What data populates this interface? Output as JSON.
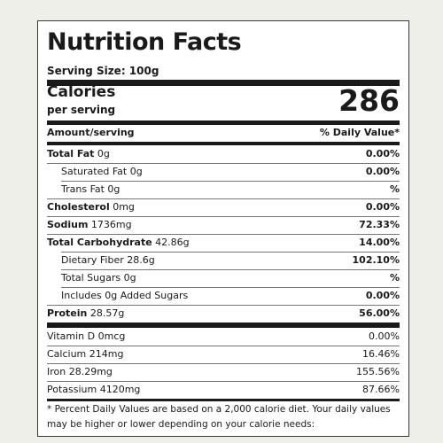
{
  "label": {
    "title": "Nutrition Facts",
    "serving_size": "Serving Size: 100g",
    "calories_label": "Calories",
    "per_serving": "per serving",
    "calories_value": "286",
    "amount_header": "Amount/serving",
    "dv_header": "% Daily Value*"
  },
  "nutrients": [
    {
      "name": "Total Fat",
      "amount": " 0g",
      "dv": "0.00%"
    },
    {
      "name": "Saturated Fat 0g",
      "amount": "",
      "dv": "0.00%"
    },
    {
      "name": "Trans Fat 0g",
      "amount": "",
      "dv": "%"
    },
    {
      "name": "Cholesterol",
      "amount": " 0mg",
      "dv": "0.00%"
    },
    {
      "name": "Sodium",
      "amount": " 1736mg",
      "dv": "72.33%"
    },
    {
      "name": "Total Carbohydrate",
      "amount": " 42.86g",
      "dv": "14.00%"
    },
    {
      "name": "Dietary Fiber 28.6g",
      "amount": "",
      "dv": "102.10%"
    },
    {
      "name": "Total Sugars 0g",
      "amount": "",
      "dv": "%"
    },
    {
      "name": "Includes 0g Added Sugars",
      "amount": "",
      "dv": "0.00%"
    },
    {
      "name": "Protein",
      "amount": " 28.57g",
      "dv": "56.00%"
    }
  ],
  "micros": [
    {
      "name": "Vitamin D 0mcg",
      "dv": "0.00%"
    },
    {
      "name": "Calcium 214mg",
      "dv": "16.46%"
    },
    {
      "name": "Iron 28.29mg",
      "dv": "155.56%"
    },
    {
      "name": "Potassium 4120mg",
      "dv": "87.66%"
    }
  ],
  "footnote": "* Percent Daily Values are based on a 2,000 calorie diet. Your daily values may be higher or lower depending on your calorie needs:"
}
